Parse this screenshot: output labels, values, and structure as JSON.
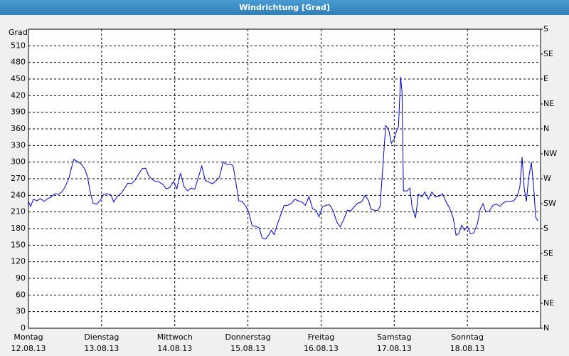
{
  "chart_data": {
    "type": "line",
    "title": "Windrichtung [Grad]",
    "ylabel": "Grad",
    "color": "#0000c8",
    "grid": true,
    "xlim": [
      0,
      7
    ],
    "xticks": [
      {
        "value": 0,
        "label": "12.08.13"
      },
      {
        "value": 1,
        "label": "13.08.13"
      },
      {
        "value": 2,
        "label": "14.08.13"
      },
      {
        "value": 3,
        "label": "15.08.13"
      },
      {
        "value": 4,
        "label": "16.08.13"
      },
      {
        "value": 5,
        "label": "17.08.13"
      },
      {
        "value": 6,
        "label": "18.08.13"
      }
    ],
    "xtick_weekdays": [
      "Montag",
      "Dienstag",
      "Mittwoch",
      "Donnerstag",
      "Freitag",
      "Samstag",
      "Sonntag"
    ],
    "ylim": [
      0,
      540
    ],
    "yticks": [
      0,
      30,
      60,
      90,
      120,
      150,
      180,
      210,
      240,
      270,
      300,
      330,
      360,
      390,
      420,
      450,
      480,
      510
    ],
    "y2lim": [
      0,
      540
    ],
    "y2ticks": [
      {
        "value": 0,
        "label": "N"
      },
      {
        "value": 45,
        "label": "NE"
      },
      {
        "value": 90,
        "label": "E"
      },
      {
        "value": 135,
        "label": "SE"
      },
      {
        "value": 180,
        "label": "S"
      },
      {
        "value": 225,
        "label": "SW"
      },
      {
        "value": 270,
        "label": "W"
      },
      {
        "value": 315,
        "label": "NW"
      },
      {
        "value": 360,
        "label": "N"
      },
      {
        "value": 405,
        "label": "NE"
      },
      {
        "value": 450,
        "label": "E"
      },
      {
        "value": 495,
        "label": "SE"
      },
      {
        "value": 540,
        "label": "S"
      }
    ],
    "x": [
      0,
      0.029,
      0.068,
      0.117,
      0.165,
      0.214,
      0.262,
      0.311,
      0.359,
      0.408,
      0.456,
      0.505,
      0.553,
      0.583,
      0.621,
      0.67,
      0.718,
      0.767,
      0.806,
      0.845,
      0.883,
      0.932,
      0.981,
      1.029,
      1.078,
      1.126,
      1.165,
      1.214,
      1.262,
      1.311,
      1.359,
      1.408,
      1.456,
      1.505,
      1.553,
      1.602,
      1.641,
      1.689,
      1.738,
      1.786,
      1.835,
      1.883,
      1.932,
      1.981,
      2.029,
      2.078,
      2.126,
      2.175,
      2.223,
      2.272,
      2.32,
      2.369,
      2.417,
      2.466,
      2.515,
      2.563,
      2.612,
      2.66,
      2.709,
      2.757,
      2.796,
      2.835,
      2.874,
      2.922,
      2.971,
      3.01,
      3.058,
      3.107,
      3.155,
      3.194,
      3.243,
      3.282,
      3.32,
      3.359,
      3.398,
      3.447,
      3.495,
      3.544,
      3.592,
      3.641,
      3.689,
      3.738,
      3.786,
      3.835,
      3.883,
      3.932,
      3.971,
      4.019,
      4.068,
      4.117,
      4.165,
      4.214,
      4.262,
      4.311,
      4.359,
      4.408,
      4.456,
      4.505,
      4.553,
      4.602,
      4.65,
      4.68,
      4.728,
      4.777,
      4.806,
      4.854,
      4.883,
      4.922,
      4.961,
      5.0,
      5.029,
      5.058,
      5.087,
      5.107,
      5.126,
      5.175,
      5.214,
      5.243,
      5.291,
      5.33,
      5.379,
      5.417,
      5.466,
      5.515,
      5.563,
      5.612,
      5.66,
      5.709,
      5.757,
      5.806,
      5.845,
      5.883,
      5.922,
      5.961,
      6.0,
      6.039,
      6.087,
      6.136,
      6.175,
      6.214,
      6.252,
      6.301,
      6.35,
      6.398,
      6.447,
      6.485,
      6.534,
      6.583,
      6.631,
      6.68,
      6.718,
      6.748,
      6.777,
      6.806,
      6.835,
      6.874,
      6.913,
      6.932,
      6.961
    ],
    "values": [
      229,
      220,
      233,
      230,
      234,
      229,
      234,
      237,
      243,
      242,
      246,
      256,
      271,
      287,
      305,
      301,
      297,
      288,
      274,
      246,
      226,
      224,
      231,
      242,
      243,
      241,
      228,
      238,
      243,
      252,
      262,
      261,
      267,
      278,
      288,
      289,
      276,
      269,
      265,
      264,
      260,
      252,
      254,
      265,
      252,
      280,
      256,
      248,
      253,
      251,
      271,
      293,
      267,
      264,
      261,
      266,
      273,
      300,
      296,
      296,
      294,
      264,
      230,
      229,
      220,
      210,
      185,
      184,
      181,
      163,
      161,
      168,
      177,
      169,
      186,
      204,
      222,
      222,
      225,
      233,
      230,
      228,
      222,
      238,
      216,
      213,
      201,
      219,
      222,
      223,
      212,
      192,
      183,
      197,
      213,
      212,
      220,
      226,
      228,
      240,
      230,
      215,
      213,
      213,
      220,
      310,
      366,
      360,
      334,
      342,
      355,
      364,
      454,
      426,
      248,
      248,
      253,
      220,
      199,
      242,
      237,
      246,
      233,
      246,
      237,
      238,
      243,
      228,
      217,
      199,
      168,
      171,
      186,
      177,
      184,
      171,
      172,
      188,
      215,
      225,
      210,
      212,
      222,
      224,
      220,
      226,
      229,
      229,
      230,
      238,
      256,
      309,
      252,
      229,
      269,
      300,
      243,
      201,
      194
    ]
  }
}
